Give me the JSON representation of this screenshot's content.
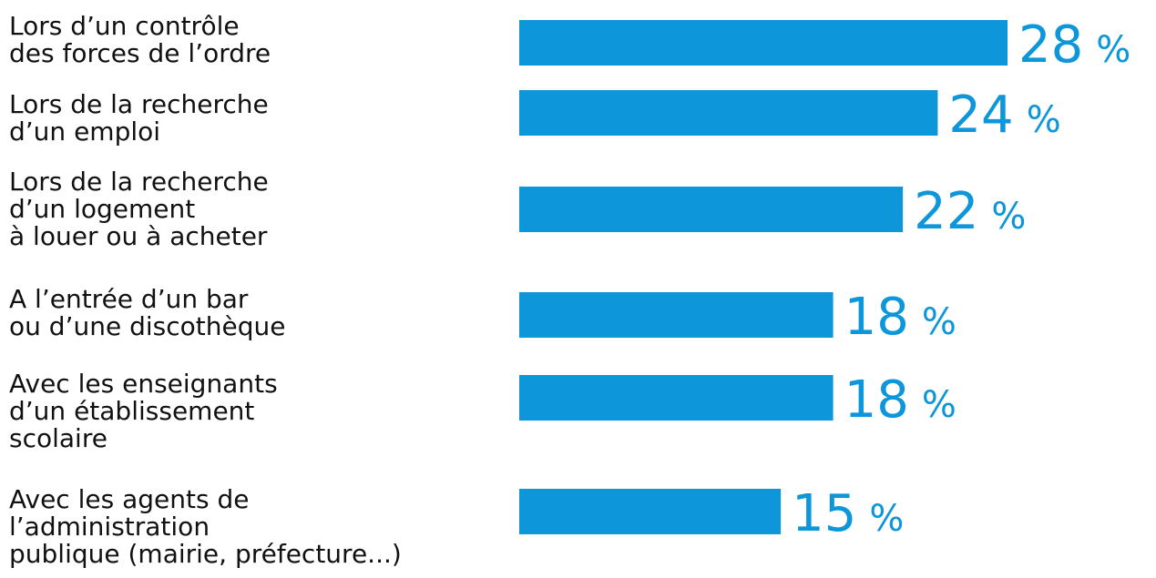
{
  "chart_data": {
    "type": "bar",
    "orientation": "horizontal",
    "title": "",
    "xlabel": "",
    "ylabel": "",
    "xlim": [
      0,
      28
    ],
    "grid": false,
    "legend": "none",
    "unit": "%",
    "categories": [
      [
        "Lors d’un contrôle",
        "des forces de l’ordre"
      ],
      [
        "Lors de la recherche",
        "d’un emploi"
      ],
      [
        "Lors de la recherche",
        "d’un logement",
        "à louer ou à acheter"
      ],
      [
        "A l’entrée d’un bar",
        "ou d’une discothèque"
      ],
      [
        "Avec les enseignants",
        "d’un établissement",
        "scolaire"
      ],
      [
        "Avec les agents de",
        "l’administration",
        "publique (mairie, préfecture...)"
      ]
    ],
    "values": [
      28,
      24,
      22,
      18,
      18,
      15
    ],
    "value_labels": [
      "28",
      "24",
      "22",
      "18",
      "18",
      "15"
    ],
    "bar_color": "#0d96d9",
    "label_color": "#111111",
    "value_color": "#0d96d9"
  }
}
